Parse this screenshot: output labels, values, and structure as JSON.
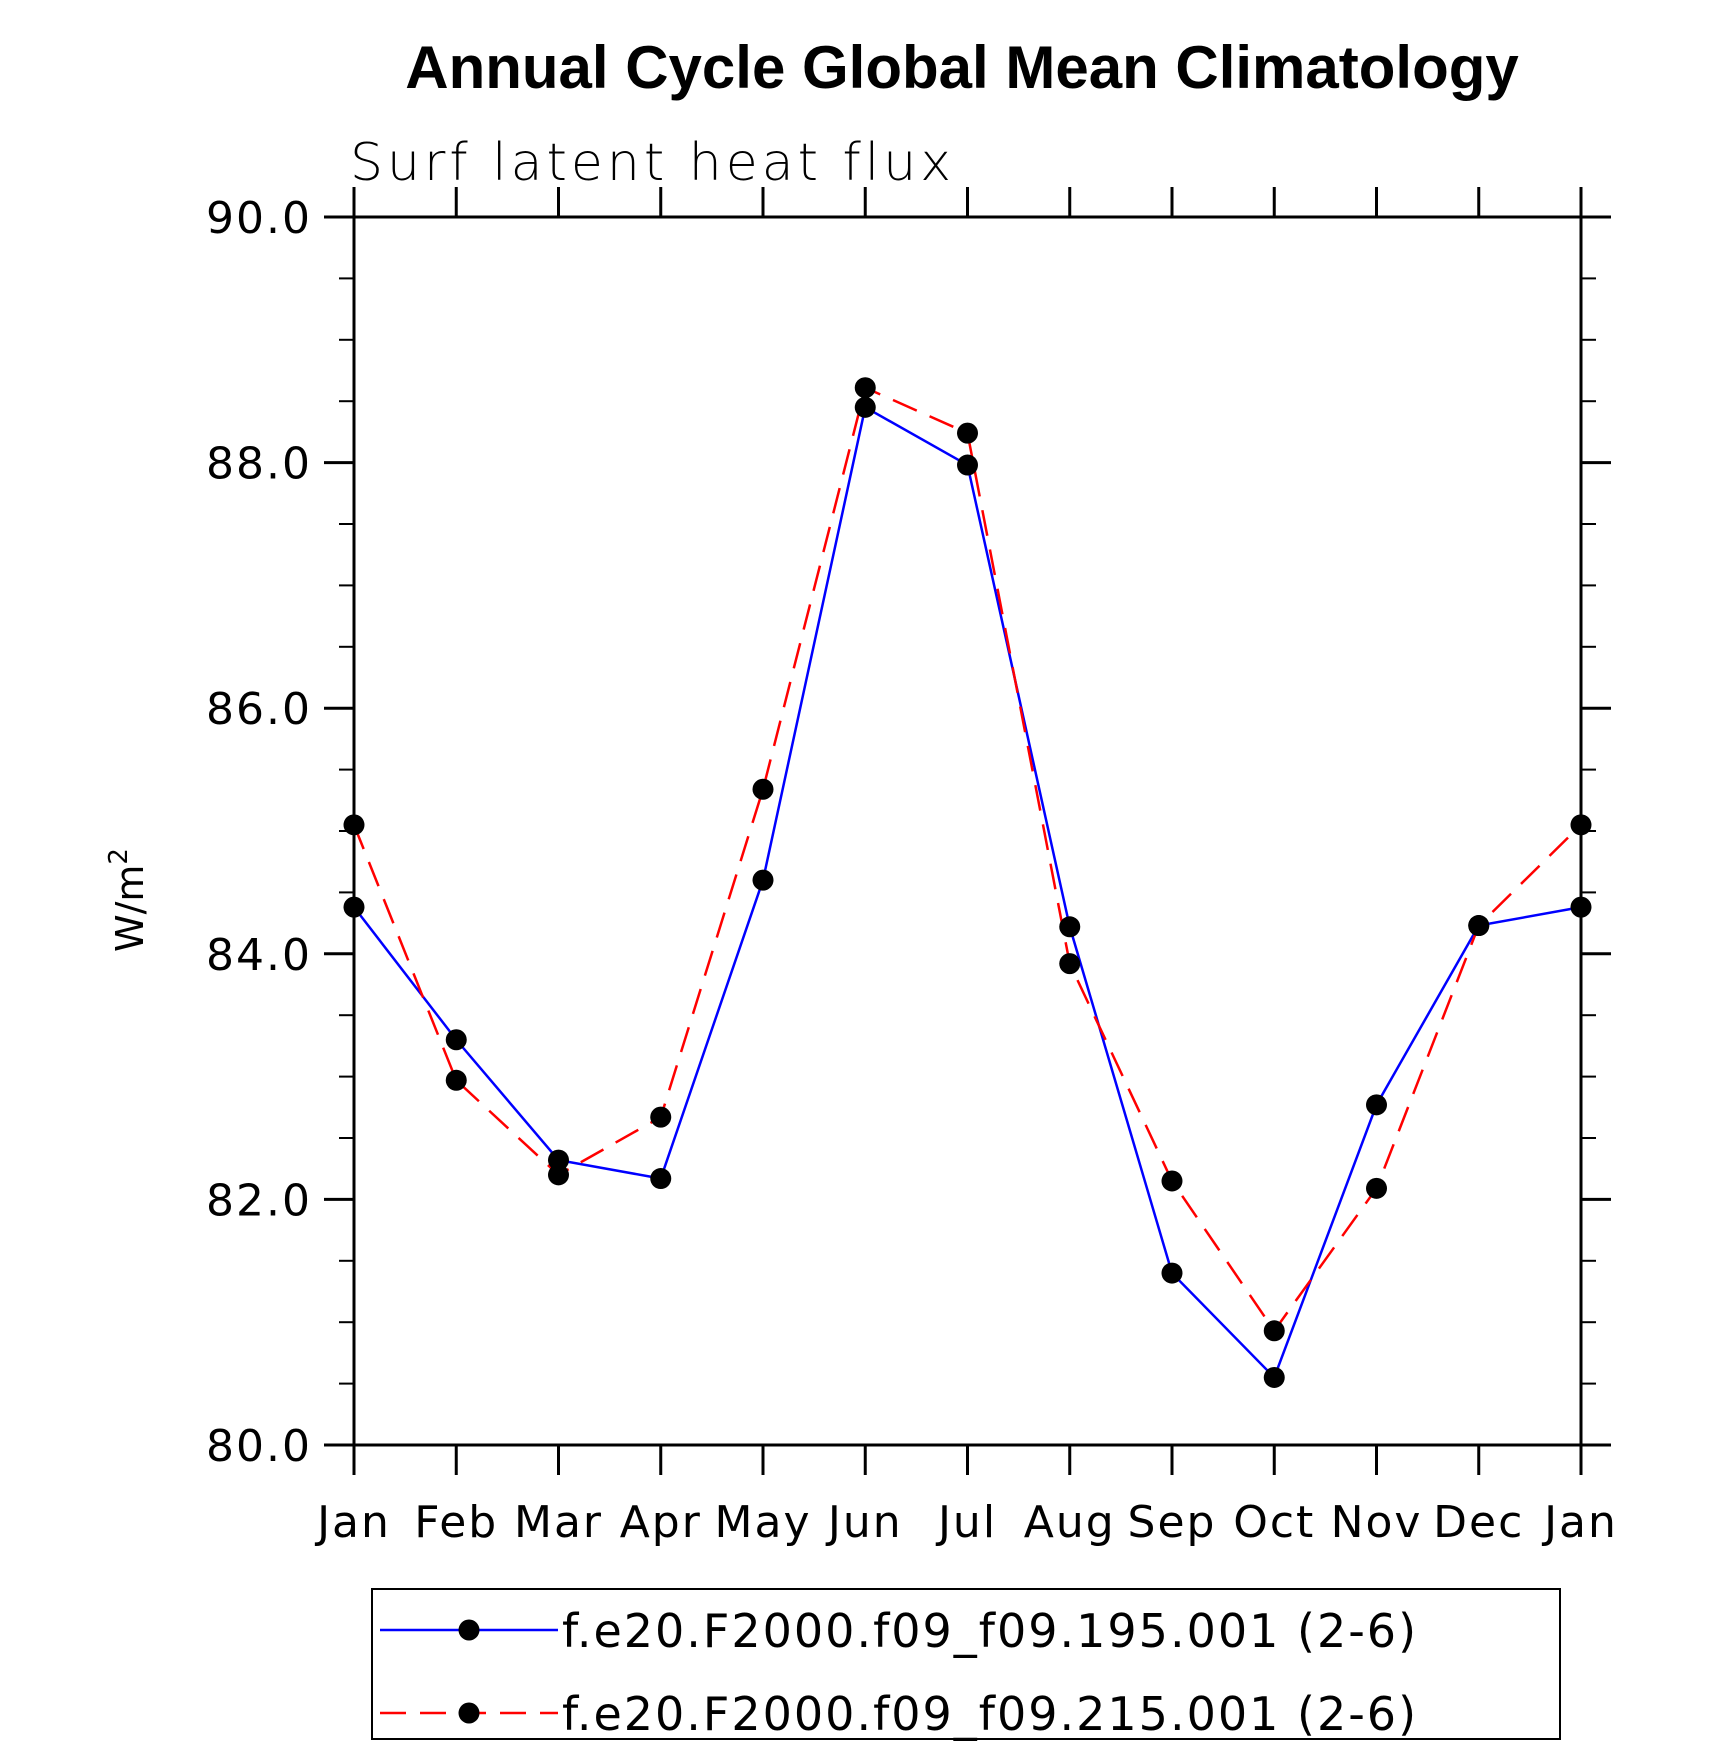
{
  "chart_data": {
    "type": "line",
    "title": "Annual Cycle Global Mean Climatology",
    "subtitle": "Surf latent heat flux",
    "xlabel": "",
    "ylabel": "W/m",
    "ylabel_superscript": "2",
    "ylim": [
      80,
      90
    ],
    "yticks": [
      80,
      82,
      84,
      86,
      88,
      90
    ],
    "ytick_labels": [
      "80.0",
      "82.0",
      "84.0",
      "86.0",
      "88.0",
      "90.0"
    ],
    "categories": [
      "Jan",
      "Feb",
      "Mar",
      "Apr",
      "May",
      "Jun",
      "Jul",
      "Aug",
      "Sep",
      "Oct",
      "Nov",
      "Dec",
      "Jan"
    ],
    "series": [
      {
        "name": "f.e20.F2000.f09_f09.195.001 (2-6)",
        "color": "#0000ff",
        "dash": "solid",
        "marker": "filled-circle",
        "values": [
          84.38,
          83.3,
          82.32,
          82.17,
          84.6,
          88.45,
          87.98,
          84.22,
          81.4,
          80.55,
          82.77,
          84.23,
          84.38
        ]
      },
      {
        "name": "f.e20.F2000.f09_f09.215.001 (2-6)",
        "color": "#ff0000",
        "dash": "dashed",
        "marker": "filled-circle",
        "values": [
          85.05,
          82.97,
          82.2,
          82.67,
          85.34,
          88.61,
          88.24,
          83.92,
          82.15,
          80.93,
          82.09,
          84.23,
          85.05
        ]
      }
    ],
    "legend_position": "bottom",
    "grid": false
  }
}
